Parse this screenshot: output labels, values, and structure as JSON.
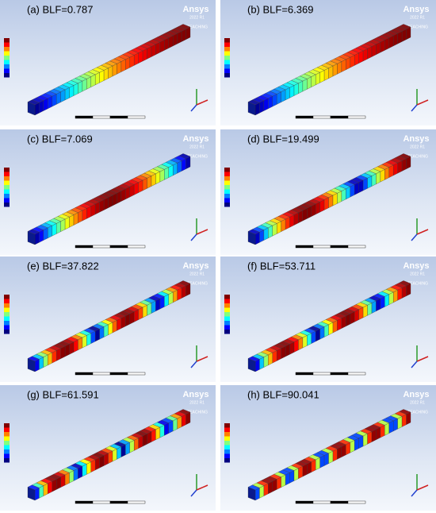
{
  "panels": [
    {
      "label": "(a) BLF=0.787"
    },
    {
      "label": "(b) BLF=6.369"
    },
    {
      "label": "(c) BLF=7.069"
    },
    {
      "label": "(d) BLF=19.499"
    },
    {
      "label": "(e) BLF=37.822"
    },
    {
      "label": "(f) BLF=53.711"
    },
    {
      "label": "(g) BLF=61.591"
    },
    {
      "label": "(h) BLF=90.041"
    }
  ],
  "brand": {
    "name": "Ansys",
    "version": "2022 R1",
    "edition": "TEACHING"
  }
}
